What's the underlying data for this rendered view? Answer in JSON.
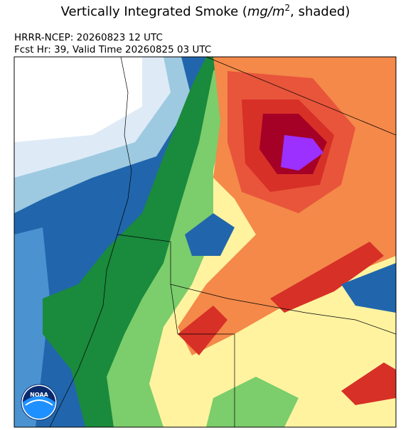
{
  "title": {
    "prefix": "Vertically Integrated Smoke (",
    "unit": "mg/m",
    "exponent": "2",
    "suffix": ", shaded)"
  },
  "subtitle": [
    "HRRR-NCEP: 20260823 12 UTC",
    "Fcst Hr: 39, Valid Time 20260825 03 UTC"
  ],
  "logo": "NOAA"
}
